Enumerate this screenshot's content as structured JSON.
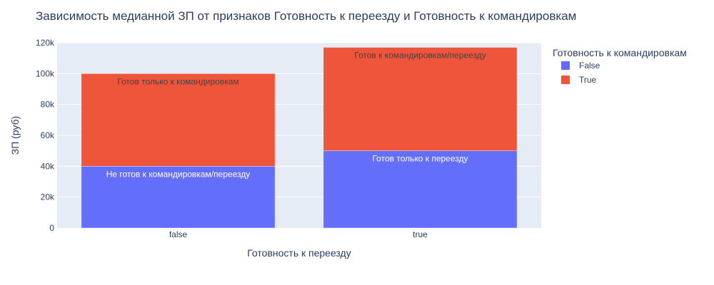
{
  "chart_data": {
    "type": "bar",
    "barmode": "stack",
    "title": "Зависимость медианной ЗП от признаков Готовность к переезду и Готовность к командировкам",
    "xlabel": "Готовность к переезду",
    "ylabel": "ЗП (руб)",
    "categories": [
      "false",
      "true"
    ],
    "ylim": [
      0,
      120000
    ],
    "yticks": [
      0,
      20000,
      40000,
      60000,
      80000,
      100000,
      120000
    ],
    "ytick_labels": [
      "0",
      "20k",
      "40k",
      "60k",
      "80k",
      "100k",
      "120k"
    ],
    "legend": {
      "title": "Готовность к командировкам",
      "position": "right"
    },
    "grid": true,
    "series": [
      {
        "name": "False",
        "color": "#636efa",
        "text_color": "#ffffff",
        "values": [
          40000,
          50000
        ],
        "labels": [
          "Не готов к командировкам/переезду",
          "Готов только к переезду"
        ]
      },
      {
        "name": "True",
        "color": "#ef553b",
        "text_color": "#444444",
        "values": [
          60000,
          67000
        ],
        "labels": [
          "Готов только к командировкам",
          "Готов к командировкам/переезду"
        ]
      }
    ]
  }
}
